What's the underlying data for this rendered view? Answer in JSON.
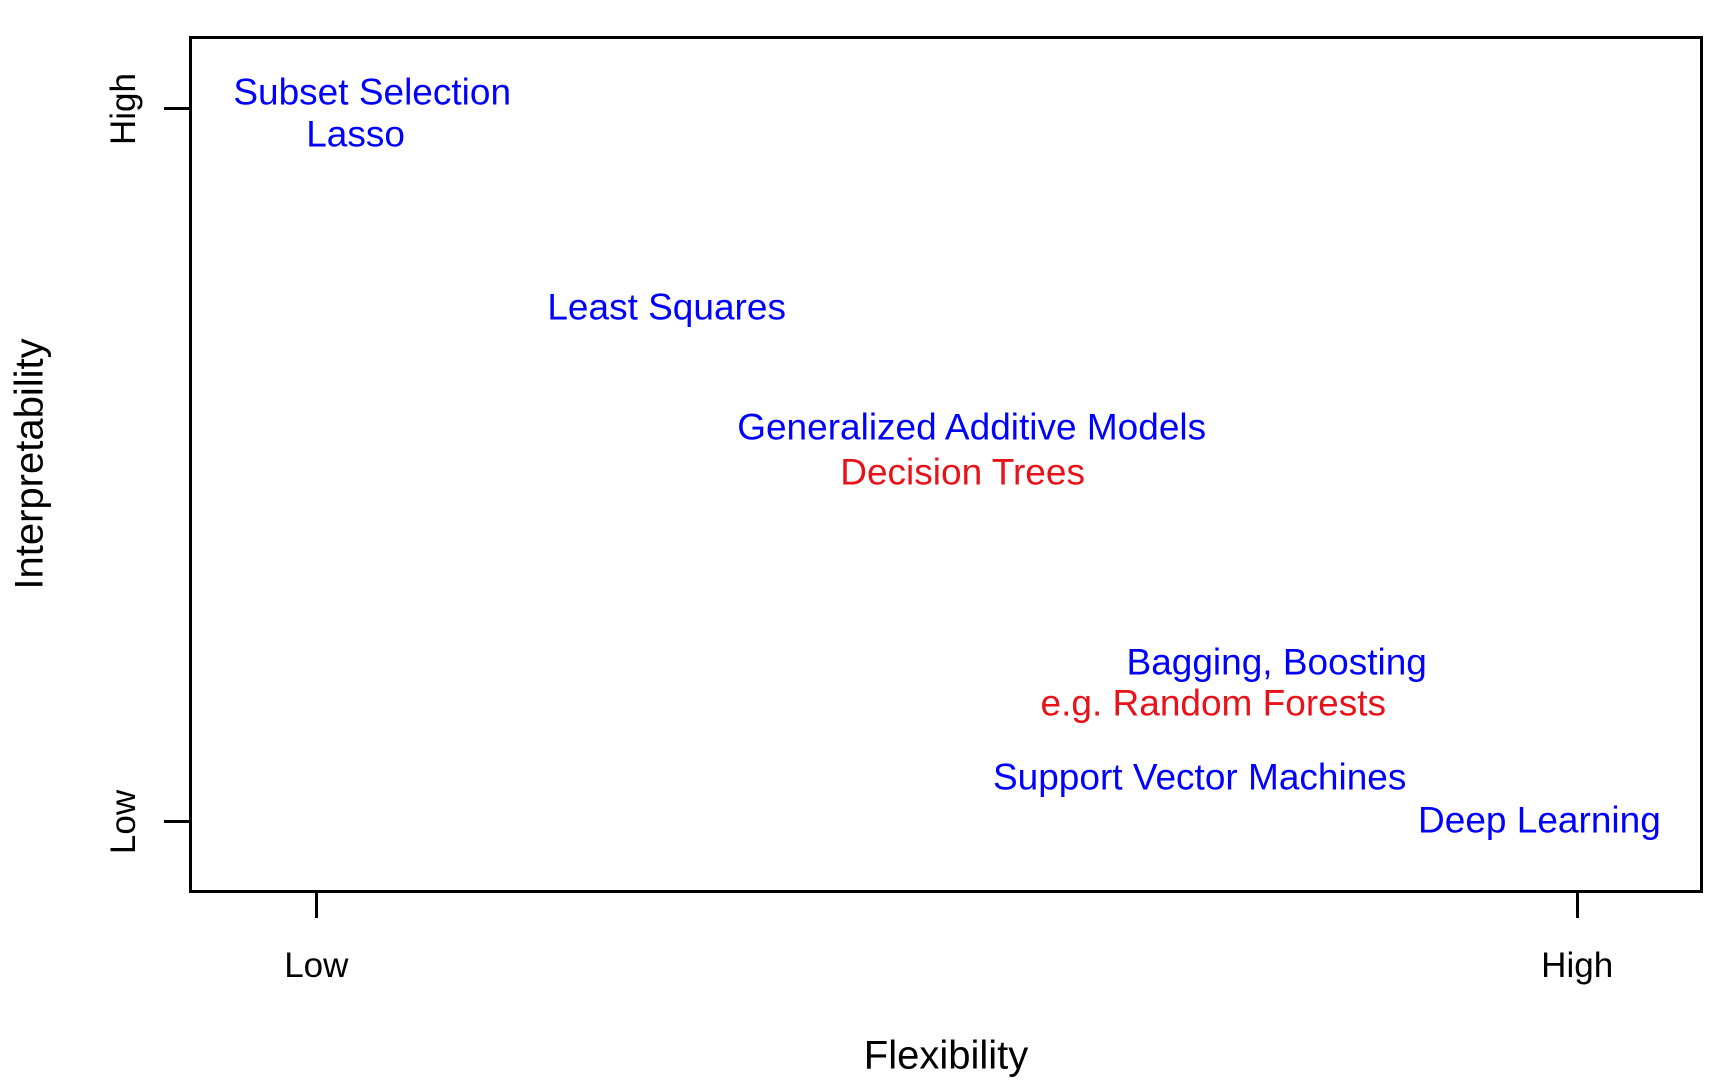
{
  "chart_data": {
    "type": "scatter",
    "title": "",
    "xlabel": "Flexibility",
    "ylabel": "Interpretability",
    "grid": false,
    "legend": "none",
    "x_axis": {
      "range_labels": [
        "Low",
        "High"
      ],
      "ticks": [
        {
          "label": "Low",
          "pos": 0.083
        },
        {
          "label": "High",
          "pos": 0.918
        }
      ]
    },
    "y_axis": {
      "range_labels": [
        "Low",
        "High"
      ],
      "ticks": [
        {
          "label": "High",
          "pos": 0.917
        },
        {
          "label": "Low",
          "pos": 0.081
        }
      ]
    },
    "points": [
      {
        "label": "Subset Selection",
        "color": "blue",
        "x": 0.12,
        "y": 0.937
      },
      {
        "label": "Lasso",
        "color": "blue",
        "x": 0.109,
        "y": 0.888
      },
      {
        "label": "Least Squares",
        "color": "blue",
        "x": 0.315,
        "y": 0.685
      },
      {
        "label": "Generalized Additive Models",
        "color": "blue",
        "x": 0.517,
        "y": 0.544
      },
      {
        "label": "Decision Trees",
        "color": "red",
        "x": 0.511,
        "y": 0.491
      },
      {
        "label": "Bagging, Boosting",
        "color": "blue",
        "x": 0.719,
        "y": 0.268
      },
      {
        "label": "e.g. Random Forests",
        "color": "red",
        "x": 0.677,
        "y": 0.22
      },
      {
        "label": "Support Vector Machines",
        "color": "blue",
        "x": 0.668,
        "y": 0.134
      },
      {
        "label": "Deep Learning",
        "color": "blue",
        "x": 0.893,
        "y": 0.083
      }
    ],
    "colors": {
      "blue": "#0000FF",
      "red": "#E8121A",
      "axis": "#000000",
      "background": "#FFFFFF"
    }
  }
}
